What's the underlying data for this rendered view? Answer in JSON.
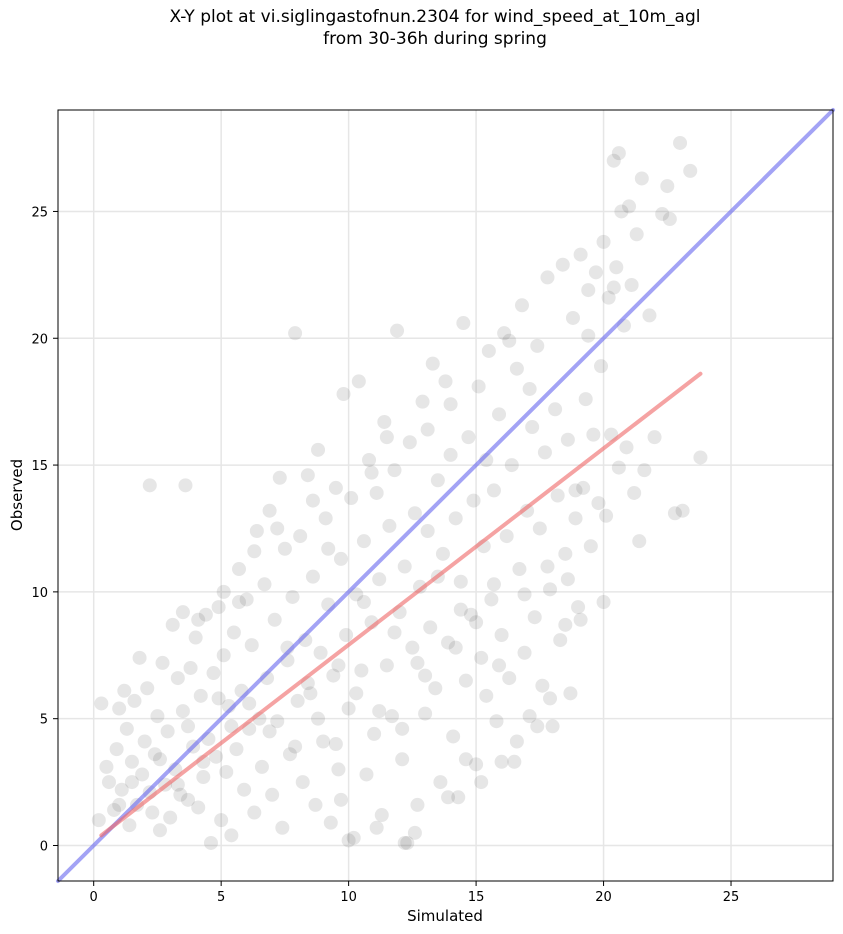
{
  "chart_data": {
    "type": "scatter",
    "title": "X-Y plot at vi.siglingastofnun.2304 for wind_speed_at_10m_agl",
    "subtitle": "from 30-36h during spring",
    "xlabel": "Simulated",
    "ylabel": "Observed",
    "xlim": [
      -1.4,
      29
    ],
    "ylim": [
      -1.4,
      29
    ],
    "xticks": [
      0,
      5,
      10,
      15,
      20,
      25
    ],
    "yticks": [
      0,
      5,
      10,
      15,
      20,
      25
    ],
    "grid": true,
    "point_color": "#333333",
    "reference_lines": [
      {
        "label": "1:1",
        "color": "#6666ee",
        "x": [
          -1.4,
          29
        ],
        "y": [
          -1.4,
          29
        ]
      },
      {
        "label": "fit",
        "color": "#ee6666",
        "x": [
          0.3,
          23.8
        ],
        "y": [
          0.4,
          18.6
        ]
      }
    ],
    "points": [
      [
        0.3,
        5.6
      ],
      [
        0.2,
        1.0
      ],
      [
        0.5,
        3.1
      ],
      [
        0.6,
        2.5
      ],
      [
        0.8,
        1.4
      ],
      [
        0.9,
        3.8
      ],
      [
        1.0,
        5.4
      ],
      [
        1.1,
        2.2
      ],
      [
        1.2,
        6.1
      ],
      [
        1.3,
        4.6
      ],
      [
        1.4,
        0.8
      ],
      [
        1.5,
        3.3
      ],
      [
        1.6,
        5.7
      ],
      [
        1.7,
        1.6
      ],
      [
        1.8,
        7.4
      ],
      [
        1.9,
        2.8
      ],
      [
        2.0,
        4.1
      ],
      [
        2.1,
        6.2
      ],
      [
        2.2,
        14.2
      ],
      [
        2.3,
        1.3
      ],
      [
        2.4,
        3.6
      ],
      [
        2.5,
        5.1
      ],
      [
        2.6,
        0.6
      ],
      [
        2.7,
        7.2
      ],
      [
        2.8,
        2.4
      ],
      [
        2.9,
        4.5
      ],
      [
        3.0,
        1.1
      ],
      [
        3.1,
        8.7
      ],
      [
        3.2,
        3.0
      ],
      [
        3.3,
        6.6
      ],
      [
        3.4,
        2.0
      ],
      [
        3.5,
        5.3
      ],
      [
        3.6,
        14.2
      ],
      [
        3.7,
        1.8
      ],
      [
        3.8,
        7.0
      ],
      [
        3.9,
        3.9
      ],
      [
        4.0,
        8.2
      ],
      [
        4.1,
        1.5
      ],
      [
        4.2,
        5.9
      ],
      [
        4.3,
        2.7
      ],
      [
        4.4,
        9.1
      ],
      [
        4.5,
        4.2
      ],
      [
        4.6,
        0.1
      ],
      [
        4.7,
        6.8
      ],
      [
        4.8,
        3.5
      ],
      [
        4.9,
        9.4
      ],
      [
        5.0,
        1.0
      ],
      [
        5.1,
        7.5
      ],
      [
        5.2,
        2.9
      ],
      [
        5.3,
        5.5
      ],
      [
        5.4,
        0.4
      ],
      [
        5.5,
        8.4
      ],
      [
        5.6,
        3.8
      ],
      [
        5.7,
        10.9
      ],
      [
        5.8,
        6.1
      ],
      [
        5.9,
        2.2
      ],
      [
        6.0,
        9.7
      ],
      [
        6.1,
        4.6
      ],
      [
        6.2,
        7.9
      ],
      [
        6.3,
        1.3
      ],
      [
        6.4,
        12.4
      ],
      [
        6.5,
        5.0
      ],
      [
        6.6,
        3.1
      ],
      [
        6.7,
        10.3
      ],
      [
        6.8,
        6.6
      ],
      [
        6.9,
        13.2
      ],
      [
        7.0,
        2.0
      ],
      [
        7.1,
        8.9
      ],
      [
        7.2,
        4.9
      ],
      [
        7.3,
        14.5
      ],
      [
        7.4,
        0.7
      ],
      [
        7.5,
        11.7
      ],
      [
        7.6,
        7.3
      ],
      [
        7.7,
        3.6
      ],
      [
        7.8,
        9.8
      ],
      [
        7.9,
        20.2
      ],
      [
        8.0,
        5.7
      ],
      [
        8.1,
        12.2
      ],
      [
        8.2,
        2.5
      ],
      [
        8.3,
        8.1
      ],
      [
        8.4,
        14.6
      ],
      [
        8.5,
        6.0
      ],
      [
        8.6,
        10.6
      ],
      [
        8.7,
        1.6
      ],
      [
        8.8,
        15.6
      ],
      [
        8.9,
        7.6
      ],
      [
        9.0,
        4.1
      ],
      [
        9.1,
        12.9
      ],
      [
        9.2,
        9.5
      ],
      [
        9.3,
        0.9
      ],
      [
        9.4,
        6.7
      ],
      [
        9.5,
        14.1
      ],
      [
        9.6,
        3.0
      ],
      [
        9.7,
        11.3
      ],
      [
        9.8,
        17.8
      ],
      [
        9.9,
        8.3
      ],
      [
        10.0,
        5.4
      ],
      [
        10.1,
        13.7
      ],
      [
        10.2,
        0.3
      ],
      [
        10.3,
        9.9
      ],
      [
        10.4,
        18.3
      ],
      [
        10.5,
        6.9
      ],
      [
        10.6,
        12.0
      ],
      [
        10.7,
        2.8
      ],
      [
        10.8,
        15.2
      ],
      [
        10.9,
        8.8
      ],
      [
        11.0,
        4.4
      ],
      [
        11.1,
        13.9
      ],
      [
        11.2,
        10.5
      ],
      [
        11.3,
        1.2
      ],
      [
        11.4,
        16.7
      ],
      [
        11.5,
        7.1
      ],
      [
        11.6,
        12.6
      ],
      [
        11.7,
        5.1
      ],
      [
        11.8,
        14.8
      ],
      [
        11.9,
        20.3
      ],
      [
        12.0,
        9.2
      ],
      [
        12.1,
        3.4
      ],
      [
        12.2,
        11.0
      ],
      [
        12.3,
        0.1
      ],
      [
        12.4,
        15.9
      ],
      [
        12.5,
        7.8
      ],
      [
        12.6,
        13.1
      ],
      [
        12.7,
        1.6
      ],
      [
        12.8,
        10.2
      ],
      [
        12.9,
        17.5
      ],
      [
        13.0,
        5.2
      ],
      [
        13.1,
        12.4
      ],
      [
        13.2,
        8.6
      ],
      [
        13.3,
        19.0
      ],
      [
        13.4,
        6.2
      ],
      [
        13.5,
        14.4
      ],
      [
        13.6,
        2.5
      ],
      [
        13.7,
        11.5
      ],
      [
        13.8,
        18.3
      ],
      [
        13.9,
        8.0
      ],
      [
        14.0,
        15.4
      ],
      [
        14.1,
        4.3
      ],
      [
        14.2,
        12.9
      ],
      [
        14.3,
        1.9
      ],
      [
        14.4,
        10.4
      ],
      [
        14.5,
        20.6
      ],
      [
        14.6,
        6.5
      ],
      [
        14.7,
        16.1
      ],
      [
        14.8,
        9.1
      ],
      [
        14.9,
        13.6
      ],
      [
        15.0,
        3.2
      ],
      [
        15.1,
        18.1
      ],
      [
        15.2,
        7.4
      ],
      [
        15.3,
        11.8
      ],
      [
        15.4,
        5.9
      ],
      [
        15.5,
        19.5
      ],
      [
        15.6,
        9.7
      ],
      [
        15.7,
        14.0
      ],
      [
        15.8,
        4.9
      ],
      [
        15.9,
        17.0
      ],
      [
        16.0,
        8.3
      ],
      [
        16.1,
        20.2
      ],
      [
        16.2,
        12.2
      ],
      [
        16.3,
        6.6
      ],
      [
        16.4,
        15.0
      ],
      [
        16.5,
        3.3
      ],
      [
        16.6,
        18.8
      ],
      [
        16.7,
        10.9
      ],
      [
        16.8,
        21.3
      ],
      [
        16.9,
        7.6
      ],
      [
        17.0,
        13.2
      ],
      [
        17.1,
        5.1
      ],
      [
        17.2,
        16.5
      ],
      [
        17.3,
        9.0
      ],
      [
        17.4,
        19.7
      ],
      [
        17.5,
        12.5
      ],
      [
        17.6,
        6.3
      ],
      [
        17.7,
        15.5
      ],
      [
        17.8,
        22.4
      ],
      [
        17.9,
        10.1
      ],
      [
        18.0,
        4.7
      ],
      [
        18.1,
        17.2
      ],
      [
        18.2,
        13.8
      ],
      [
        18.3,
        8.1
      ],
      [
        18.4,
        22.9
      ],
      [
        18.5,
        11.5
      ],
      [
        18.6,
        16.0
      ],
      [
        18.7,
        6.0
      ],
      [
        18.8,
        20.8
      ],
      [
        18.9,
        12.9
      ],
      [
        19.0,
        9.4
      ],
      [
        19.1,
        23.3
      ],
      [
        19.2,
        14.1
      ],
      [
        19.3,
        17.6
      ],
      [
        19.4,
        21.9
      ],
      [
        19.5,
        11.8
      ],
      [
        19.6,
        16.2
      ],
      [
        19.7,
        22.6
      ],
      [
        19.8,
        13.5
      ],
      [
        19.9,
        18.9
      ],
      [
        20.0,
        23.8
      ],
      [
        20.1,
        13.0
      ],
      [
        20.2,
        21.6
      ],
      [
        20.3,
        16.2
      ],
      [
        20.4,
        27.0
      ],
      [
        20.5,
        22.8
      ],
      [
        20.6,
        14.9
      ],
      [
        20.7,
        25.0
      ],
      [
        20.8,
        20.5
      ],
      [
        20.9,
        15.7
      ],
      [
        21.0,
        25.2
      ],
      [
        21.1,
        22.1
      ],
      [
        21.2,
        13.9
      ],
      [
        21.3,
        24.1
      ],
      [
        21.4,
        12.0
      ],
      [
        21.5,
        26.3
      ],
      [
        21.6,
        14.8
      ],
      [
        21.8,
        20.9
      ],
      [
        22.0,
        16.1
      ],
      [
        22.3,
        24.9
      ],
      [
        22.5,
        26.0
      ],
      [
        22.6,
        24.7
      ],
      [
        22.8,
        13.1
      ],
      [
        23.0,
        27.7
      ],
      [
        23.1,
        13.2
      ],
      [
        23.4,
        26.6
      ],
      [
        23.8,
        15.3
      ],
      [
        20.6,
        27.3
      ],
      [
        20.4,
        22.0
      ],
      [
        19.4,
        20.1
      ],
      [
        18.9,
        14.0
      ],
      [
        18.5,
        8.7
      ],
      [
        17.9,
        5.8
      ],
      [
        17.4,
        4.7
      ],
      [
        16.6,
        4.1
      ],
      [
        16.0,
        3.3
      ],
      [
        15.2,
        2.5
      ],
      [
        14.6,
        3.4
      ],
      [
        13.9,
        1.9
      ],
      [
        12.6,
        0.5
      ],
      [
        12.2,
        0.1
      ],
      [
        11.1,
        0.7
      ],
      [
        10.0,
        0.2
      ],
      [
        9.7,
        1.8
      ],
      [
        5.7,
        9.6
      ],
      [
        6.3,
        11.6
      ],
      [
        5.1,
        10.0
      ],
      [
        4.1,
        8.9
      ],
      [
        3.5,
        9.2
      ],
      [
        7.2,
        12.5
      ],
      [
        8.6,
        13.6
      ],
      [
        9.2,
        11.7
      ],
      [
        10.9,
        14.7
      ],
      [
        11.5,
        16.1
      ],
      [
        13.1,
        16.4
      ],
      [
        14.0,
        17.4
      ],
      [
        15.4,
        15.2
      ],
      [
        16.3,
        19.9
      ],
      [
        17.1,
        18.0
      ],
      [
        7.6,
        7.8
      ],
      [
        8.4,
        6.4
      ],
      [
        9.6,
        7.1
      ],
      [
        10.6,
        9.6
      ],
      [
        11.8,
        8.4
      ],
      [
        12.7,
        7.2
      ],
      [
        13.5,
        10.6
      ],
      [
        14.4,
        9.3
      ],
      [
        15.7,
        10.3
      ],
      [
        16.9,
        9.9
      ],
      [
        17.8,
        11.0
      ],
      [
        18.6,
        10.5
      ],
      [
        19.1,
        8.9
      ],
      [
        20.0,
        9.6
      ],
      [
        6.9,
        4.5
      ],
      [
        7.9,
        3.9
      ],
      [
        8.8,
        5.0
      ],
      [
        9.5,
        4.0
      ],
      [
        10.3,
        6.0
      ],
      [
        11.2,
        5.3
      ],
      [
        12.1,
        4.6
      ],
      [
        13.0,
        6.7
      ],
      [
        14.2,
        7.8
      ],
      [
        15.0,
        8.8
      ],
      [
        15.9,
        7.1
      ],
      [
        4.9,
        5.8
      ],
      [
        5.4,
        4.7
      ],
      [
        6.1,
        5.6
      ],
      [
        4.3,
        3.3
      ],
      [
        3.7,
        4.7
      ],
      [
        3.3,
        2.4
      ],
      [
        2.6,
        3.4
      ],
      [
        2.2,
        2.1
      ],
      [
        1.5,
        2.5
      ],
      [
        1.0,
        1.6
      ]
    ]
  }
}
